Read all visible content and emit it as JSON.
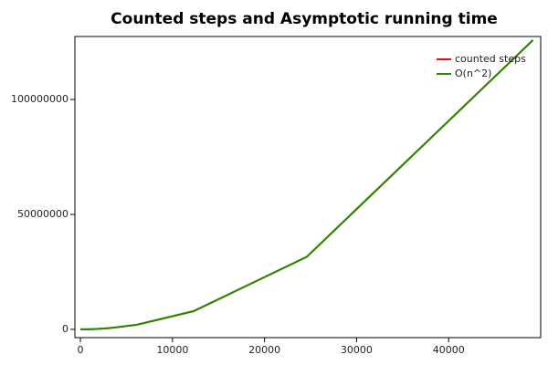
{
  "chart_data": {
    "type": "line",
    "title": "Counted steps and Asymptotic running time",
    "x": [
      0,
      768,
      1536,
      3072,
      6144,
      12288,
      24576,
      49152
    ],
    "series": [
      {
        "name": "counted steps",
        "color": "#ff0000",
        "values": [
          0,
          0,
          100000,
          500000,
          2000000,
          7900000,
          31500000,
          125800000
        ]
      },
      {
        "name": "O(n^2)",
        "color": "#228b00",
        "values": [
          0,
          0,
          100000,
          500000,
          2000000,
          7900000,
          31500000,
          125800000
        ]
      }
    ],
    "xlim": [
      -600,
      50000
    ],
    "xticks": [
      0,
      10000,
      20000,
      30000,
      40000
    ],
    "ylim": [
      -3600000,
      127400000
    ],
    "yticks": [
      0,
      50000000,
      100000000
    ],
    "legend": "upper-right"
  }
}
